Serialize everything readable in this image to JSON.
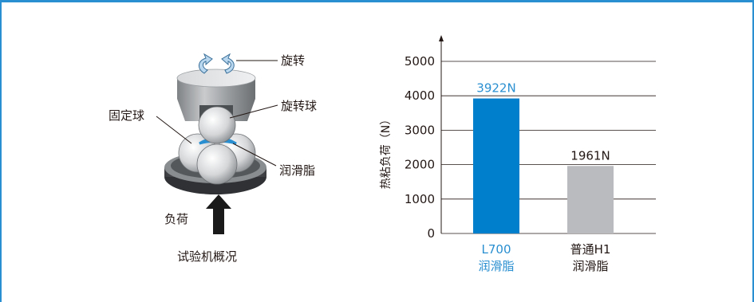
{
  "diagram": {
    "labels": {
      "rotation": "旋转",
      "rotating_ball": "旋转球",
      "fixed_ball": "固定球",
      "grease": "润滑脂",
      "load": "负荷",
      "caption": "试验机概况"
    }
  },
  "chart_data": {
    "type": "bar",
    "categories": [
      {
        "line1": "L700",
        "line2": "润滑脂"
      },
      {
        "line1": "普通H1",
        "line2": "润滑脂"
      }
    ],
    "values": [
      3922,
      1961
    ],
    "value_labels": [
      "3922N",
      "1961N"
    ],
    "bar_colors": [
      "#0080cc",
      "#b9bbbe"
    ],
    "category_colors": [
      "#2a8fd0",
      "#231815"
    ],
    "value_label_colors": [
      "#2a8fd0",
      "#231815"
    ],
    "ylabel": "热粘负荷（N）",
    "ylim": [
      0,
      5000
    ],
    "yticks": [
      0,
      1000,
      2000,
      3000,
      4000,
      5000
    ],
    "grid": true
  }
}
